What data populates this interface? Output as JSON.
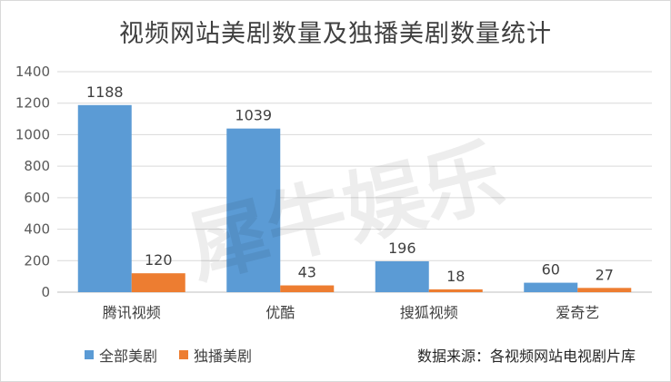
{
  "chart_data": {
    "type": "bar",
    "title": "视频网站美剧数量及独播美剧数量统计",
    "categories": [
      "腾讯视频",
      "优酷",
      "搜狐视频",
      "爱奇艺"
    ],
    "series": [
      {
        "name": "全部美剧",
        "values": [
          1188,
          1039,
          196,
          60
        ],
        "color": "#5b9bd5"
      },
      {
        "name": "独播美剧",
        "values": [
          120,
          43,
          18,
          27
        ],
        "color": "#ed7d31"
      }
    ],
    "ylim": [
      0,
      1400
    ],
    "yticks": [
      "0",
      "200",
      "400",
      "600",
      "800",
      "1000",
      "1200",
      "1400"
    ],
    "grid": true,
    "legend_position": "bottom-left"
  },
  "watermark": "犀牛娱乐",
  "source_note": "数据来源：各视频网站电视剧片库"
}
